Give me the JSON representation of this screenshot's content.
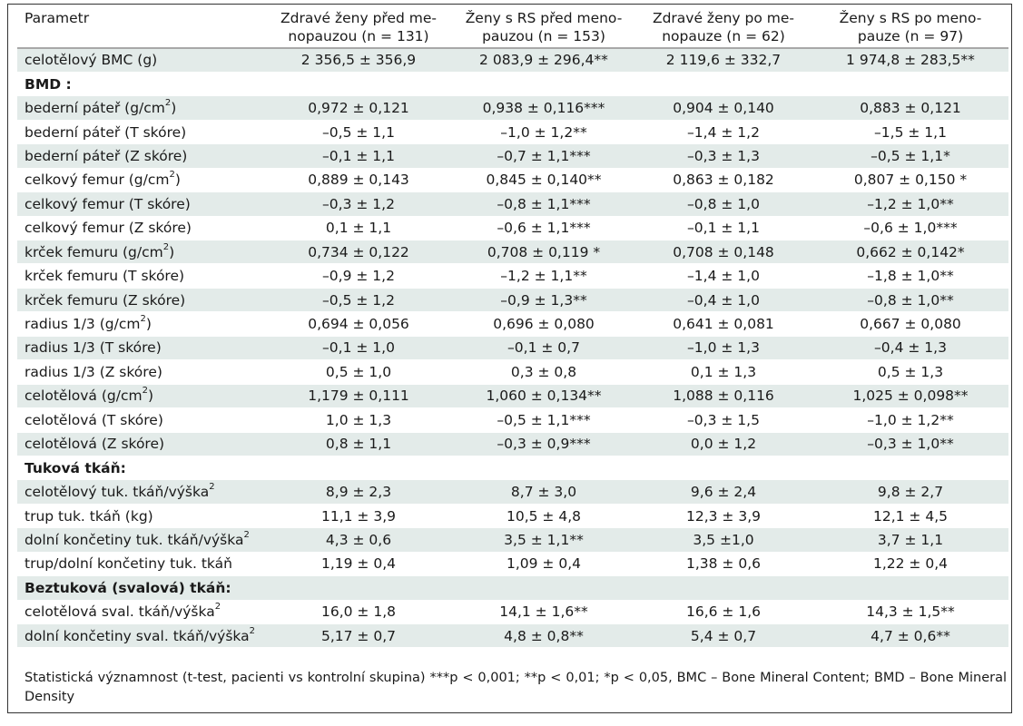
{
  "table": {
    "headers": [
      "Parametr",
      "Zdravé ženy před me-nopauzou (n = 131)",
      "Ženy s RS před meno-pauzou (n = 153)",
      "Zdravé ženy po me-nopauze (n = 62)",
      "Ženy s RS po meno-pauze (n = 97)"
    ],
    "header_lines": [
      [
        "Parametr"
      ],
      [
        "Zdravé ženy před me-",
        "nopauzou (n = 131)"
      ],
      [
        "Ženy s RS před meno-",
        "pauzou (n = 153)"
      ],
      [
        "Zdravé ženy po me-",
        "nopauze (n = 62)"
      ],
      [
        "Ženy s RS po meno-",
        "pauze (n = 97)"
      ]
    ],
    "rows": [
      {
        "kind": "data",
        "label": "celotělový BMC (g)",
        "values": [
          "2 356,5 ± 356,9",
          "2 083,9 ± 296,4**",
          "2 119,6 ± 332,7",
          "1 974,8 ± 283,5**"
        ]
      },
      {
        "kind": "section",
        "label": "BMD :",
        "values": []
      },
      {
        "kind": "data",
        "label": "bederní páteř (g/cm",
        "sup": "2",
        "label_tail": ")",
        "values": [
          "0,972 ± 0,121",
          "0,938 ± 0,116***",
          "0,904 ± 0,140",
          "0,883 ± 0,121"
        ]
      },
      {
        "kind": "data",
        "label": "bederní páteř (T skóre)",
        "values": [
          "–0,5 ± 1,1",
          "–1,0 ± 1,2**",
          "–1,4 ± 1,2",
          "–1,5 ± 1,1"
        ]
      },
      {
        "kind": "data",
        "label": "bederní páteř (Z skóre)",
        "values": [
          "–0,1 ± 1,1",
          "–0,7 ± 1,1***",
          "–0,3 ± 1,3",
          "–0,5 ± 1,1*"
        ]
      },
      {
        "kind": "data",
        "label": "celkový femur (g/cm",
        "sup": "2",
        "label_tail": ")",
        "values": [
          "0,889 ± 0,143",
          "0,845 ± 0,140**",
          "0,863 ± 0,182",
          "0,807 ± 0,150 *"
        ]
      },
      {
        "kind": "data",
        "label": "celkový femur (T skóre)",
        "values": [
          "–0,3 ± 1,2",
          "–0,8 ± 1,1***",
          "–0,8 ± 1,0",
          "–1,2 ± 1,0**"
        ]
      },
      {
        "kind": "data",
        "label": "celkový femur (Z skóre)",
        "values": [
          "0,1 ± 1,1",
          "–0,6 ± 1,1***",
          "–0,1 ± 1,1",
          "–0,6 ± 1,0***"
        ]
      },
      {
        "kind": "data",
        "label": "krček femuru (g/cm",
        "sup": "2",
        "label_tail": ")",
        "values": [
          "0,734 ± 0,122",
          "0,708 ± 0,119 *",
          "0,708 ± 0,148",
          "0,662 ± 0,142*"
        ]
      },
      {
        "kind": "data",
        "label": "krček femuru (T skóre)",
        "values": [
          "–0,9 ± 1,2",
          "–1,2 ± 1,1**",
          "–1,4 ± 1,0",
          "–1,8 ± 1,0**"
        ]
      },
      {
        "kind": "data",
        "label": "krček femuru (Z skóre)",
        "values": [
          "–0,5 ± 1,2",
          "–0,9 ± 1,3**",
          "–0,4 ± 1,0",
          "–0,8 ± 1,0**"
        ]
      },
      {
        "kind": "data",
        "label": "radius 1/3 (g/cm",
        "sup": "2",
        "label_tail": ")",
        "values": [
          "0,694 ± 0,056",
          "0,696 ± 0,080",
          "0,641 ± 0,081",
          "0,667 ± 0,080"
        ]
      },
      {
        "kind": "data",
        "label": "radius 1/3 (T skóre)",
        "values": [
          "–0,1 ± 1,0",
          "–0,1 ± 0,7",
          "–1,0 ± 1,3",
          "–0,4 ± 1,3"
        ]
      },
      {
        "kind": "data",
        "label": "radius 1/3 (Z skóre)",
        "values": [
          "0,5 ± 1,0",
          "0,3 ± 0,8",
          "0,1 ± 1,3",
          "0,5 ± 1,3"
        ]
      },
      {
        "kind": "data",
        "label": "celotělová (g/cm",
        "sup": "2",
        "label_tail": ")",
        "values": [
          "1,179 ± 0,111",
          "1,060 ± 0,134**",
          "1,088 ± 0,116",
          "1,025 ± 0,098**"
        ]
      },
      {
        "kind": "data",
        "label": "celotělová (T skóre)",
        "values": [
          "1,0 ± 1,3",
          "–0,5 ± 1,1***",
          "–0,3 ± 1,5",
          "–1,0 ± 1,2**"
        ]
      },
      {
        "kind": "data",
        "label": "celotělová (Z skóre)",
        "values": [
          "0,8 ± 1,1",
          "–0,3 ± 0,9***",
          "0,0 ± 1,2",
          "–0,3 ± 1,0**"
        ]
      },
      {
        "kind": "section",
        "label": "Tuková tkáň:",
        "values": []
      },
      {
        "kind": "data",
        "label": "celotělový tuk. tkáň/výška",
        "sup": "2",
        "label_tail": "",
        "values": [
          "8,9 ± 2,3",
          "8,7 ± 3,0",
          "9,6 ± 2,4",
          "9,8 ± 2,7"
        ]
      },
      {
        "kind": "data",
        "label": "trup tuk. tkáň (kg)",
        "values": [
          "11,1 ± 3,9",
          "10,5 ± 4,8",
          "12,3 ± 3,9",
          "12,1 ± 4,5"
        ]
      },
      {
        "kind": "data",
        "label": "dolní končetiny tuk. tkáň/výška",
        "sup": "2",
        "label_tail": "",
        "values": [
          "4,3 ± 0,6",
          "3,5 ± 1,1**",
          "3,5 ±1,0",
          "3,7 ± 1,1"
        ]
      },
      {
        "kind": "data",
        "label": "trup/dolní končetiny tuk. tkáň",
        "values": [
          "1,19 ± 0,4",
          "1,09 ± 0,4",
          "1,38 ± 0,6",
          "1,22 ± 0,4"
        ]
      },
      {
        "kind": "section",
        "label": "Beztuková (svalová) tkáň:",
        "values": []
      },
      {
        "kind": "data",
        "label": "celotělová sval. tkáň/výška",
        "sup": "2",
        "label_tail": "",
        "values": [
          "16,0 ± 1,8",
          "14,1 ± 1,6**",
          "16,6 ± 1,6",
          "14,3 ± 1,5**"
        ]
      },
      {
        "kind": "data",
        "label": "dolní končetiny sval. tkáň/výška",
        "sup": "2",
        "label_tail": "",
        "values": [
          "5,17 ± 0,7",
          "4,8 ± 0,8**",
          "5,4 ± 0,7",
          "4,7 ± 0,6**"
        ]
      }
    ],
    "colors": {
      "shade": "#e3ebe9",
      "border": "#333333",
      "rule": "#a8a8a8"
    }
  },
  "footnote": "Statistická významnost (t-test, pacienti vs kontrolní skupina) ***p < 0,001; **p < 0,01; *p < 0,05, BMC – Bone Mineral Content; BMD – Bone Mineral Density"
}
